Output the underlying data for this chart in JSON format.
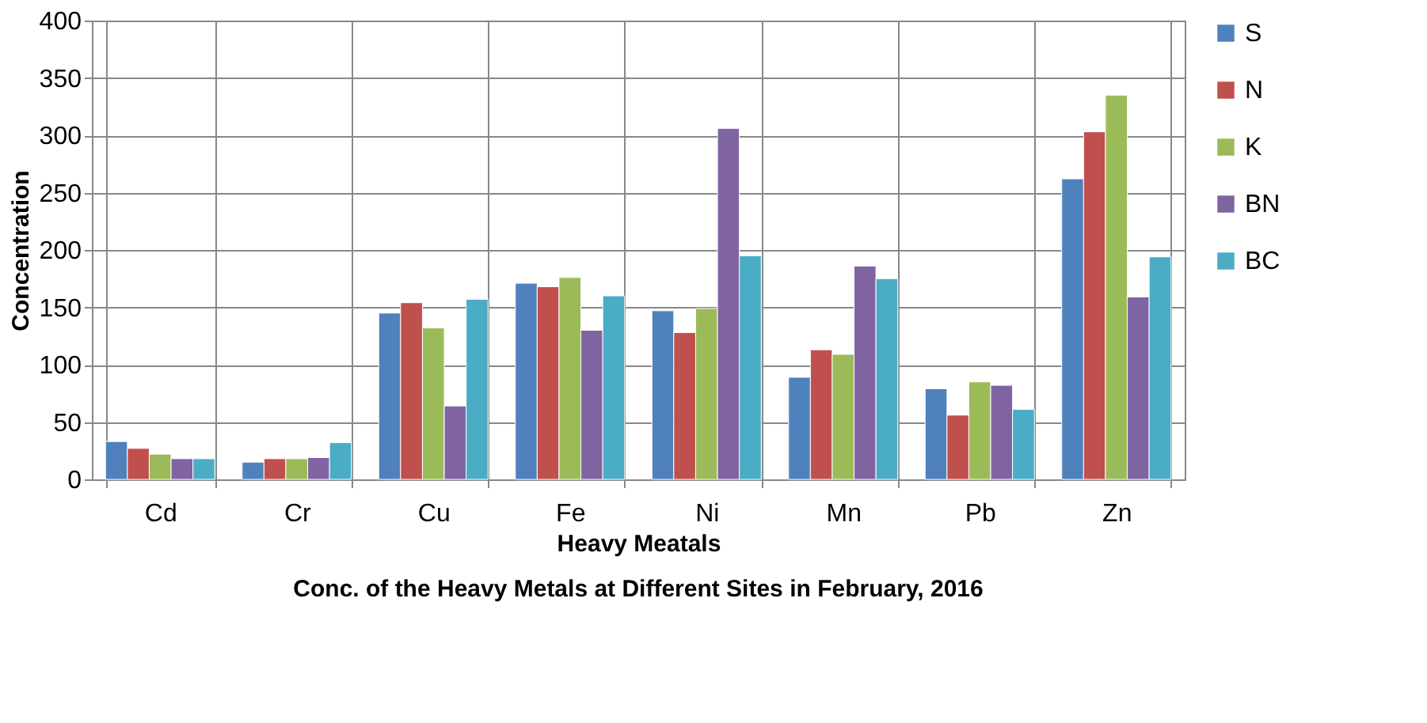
{
  "chart_data": {
    "type": "bar",
    "title": "Conc. of the Heavy  Metals at Different Sites in February, 2016",
    "xlabel": "Heavy Meatals",
    "ylabel": "Concentration",
    "categories": [
      "Cd",
      "Cr",
      "Cu",
      "Fe",
      "Ni",
      "Mn",
      "Pb",
      "Zn"
    ],
    "series": [
      {
        "name": "S",
        "color": "#4f81bd",
        "values": [
          33,
          15,
          145,
          171,
          147,
          89,
          79,
          262
        ]
      },
      {
        "name": "N",
        "color": "#c0504d",
        "values": [
          27,
          18,
          154,
          168,
          128,
          113,
          56,
          303
        ]
      },
      {
        "name": "K",
        "color": "#9bbb59",
        "values": [
          22,
          18,
          132,
          176,
          149,
          109,
          85,
          335
        ]
      },
      {
        "name": "BN",
        "color": "#8064a2",
        "values": [
          18,
          19,
          64,
          130,
          306,
          186,
          82,
          159
        ]
      },
      {
        "name": "BC",
        "color": "#4bacc6",
        "values": [
          18,
          32,
          157,
          160,
          195,
          175,
          61,
          194
        ]
      }
    ],
    "ylim": [
      0,
      400
    ],
    "yticks": [
      0,
      50,
      100,
      150,
      200,
      250,
      300,
      350,
      400
    ],
    "grid": true,
    "legend": "right"
  }
}
